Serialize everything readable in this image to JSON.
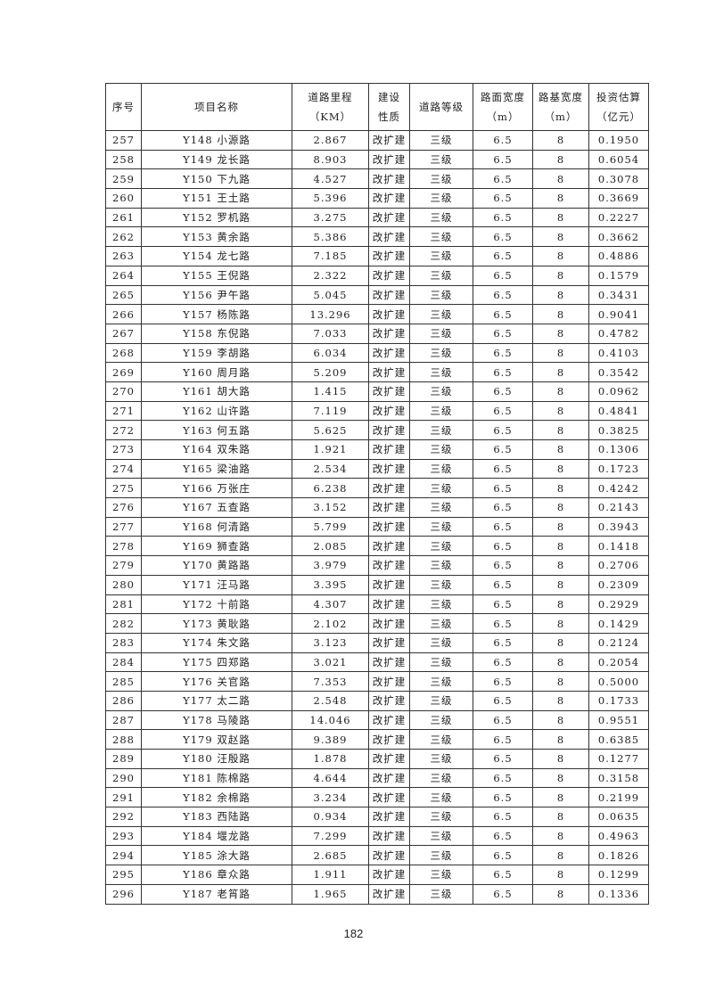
{
  "table": {
    "headers": [
      {
        "l1": "序号",
        "l2": ""
      },
      {
        "l1": "项目名称",
        "l2": ""
      },
      {
        "l1": "道路里程",
        "l2": "（KM）"
      },
      {
        "l1": "建设",
        "l2": "性质"
      },
      {
        "l1": "道路等级",
        "l2": ""
      },
      {
        "l1": "路面宽度",
        "l2": "（m）"
      },
      {
        "l1": "路基宽度",
        "l2": "（m）"
      },
      {
        "l1": "投资估算",
        "l2": "（亿元）"
      }
    ],
    "rows": [
      [
        "257",
        "Y148 小源路",
        "2.867",
        "改扩建",
        "三级",
        "6.5",
        "8",
        "0.1950"
      ],
      [
        "258",
        "Y149 龙长路",
        "8.903",
        "改扩建",
        "三级",
        "6.5",
        "8",
        "0.6054"
      ],
      [
        "259",
        "Y150 下九路",
        "4.527",
        "改扩建",
        "三级",
        "6.5",
        "8",
        "0.3078"
      ],
      [
        "260",
        "Y151 王土路",
        "5.396",
        "改扩建",
        "三级",
        "6.5",
        "8",
        "0.3669"
      ],
      [
        "261",
        "Y152 罗机路",
        "3.275",
        "改扩建",
        "三级",
        "6.5",
        "8",
        "0.2227"
      ],
      [
        "262",
        "Y153 黄余路",
        "5.386",
        "改扩建",
        "三级",
        "6.5",
        "8",
        "0.3662"
      ],
      [
        "263",
        "Y154 龙七路",
        "7.185",
        "改扩建",
        "三级",
        "6.5",
        "8",
        "0.4886"
      ],
      [
        "264",
        "Y155 王倪路",
        "2.322",
        "改扩建",
        "三级",
        "6.5",
        "8",
        "0.1579"
      ],
      [
        "265",
        "Y156 尹午路",
        "5.045",
        "改扩建",
        "三级",
        "6.5",
        "8",
        "0.3431"
      ],
      [
        "266",
        "Y157 杨陈路",
        "13.296",
        "改扩建",
        "三级",
        "6.5",
        "8",
        "0.9041"
      ],
      [
        "267",
        "Y158 东倪路",
        "7.033",
        "改扩建",
        "三级",
        "6.5",
        "8",
        "0.4782"
      ],
      [
        "268",
        "Y159 李胡路",
        "6.034",
        "改扩建",
        "三级",
        "6.5",
        "8",
        "0.4103"
      ],
      [
        "269",
        "Y160 周月路",
        "5.209",
        "改扩建",
        "三级",
        "6.5",
        "8",
        "0.3542"
      ],
      [
        "270",
        "Y161 胡大路",
        "1.415",
        "改扩建",
        "三级",
        "6.5",
        "8",
        "0.0962"
      ],
      [
        "271",
        "Y162 山许路",
        "7.119",
        "改扩建",
        "三级",
        "6.5",
        "8",
        "0.4841"
      ],
      [
        "272",
        "Y163 何五路",
        "5.625",
        "改扩建",
        "三级",
        "6.5",
        "8",
        "0.3825"
      ],
      [
        "273",
        "Y164 双朱路",
        "1.921",
        "改扩建",
        "三级",
        "6.5",
        "8",
        "0.1306"
      ],
      [
        "274",
        "Y165 梁油路",
        "2.534",
        "改扩建",
        "三级",
        "6.5",
        "8",
        "0.1723"
      ],
      [
        "275",
        "Y166 万张庄",
        "6.238",
        "改扩建",
        "三级",
        "6.5",
        "8",
        "0.4242"
      ],
      [
        "276",
        "Y167 五查路",
        "3.152",
        "改扩建",
        "三级",
        "6.5",
        "8",
        "0.2143"
      ],
      [
        "277",
        "Y168 何清路",
        "5.799",
        "改扩建",
        "三级",
        "6.5",
        "8",
        "0.3943"
      ],
      [
        "278",
        "Y169 狮查路",
        "2.085",
        "改扩建",
        "三级",
        "6.5",
        "8",
        "0.1418"
      ],
      [
        "279",
        "Y170 黄路路",
        "3.979",
        "改扩建",
        "三级",
        "6.5",
        "8",
        "0.2706"
      ],
      [
        "280",
        "Y171 汪马路",
        "3.395",
        "改扩建",
        "三级",
        "6.5",
        "8",
        "0.2309"
      ],
      [
        "281",
        "Y172 十前路",
        "4.307",
        "改扩建",
        "三级",
        "6.5",
        "8",
        "0.2929"
      ],
      [
        "282",
        "Y173 黄耿路",
        "2.102",
        "改扩建",
        "三级",
        "6.5",
        "8",
        "0.1429"
      ],
      [
        "283",
        "Y174 朱文路",
        "3.123",
        "改扩建",
        "三级",
        "6.5",
        "8",
        "0.2124"
      ],
      [
        "284",
        "Y175 四郑路",
        "3.021",
        "改扩建",
        "三级",
        "6.5",
        "8",
        "0.2054"
      ],
      [
        "285",
        "Y176 关官路",
        "7.353",
        "改扩建",
        "三级",
        "6.5",
        "8",
        "0.5000"
      ],
      [
        "286",
        "Y177 太二路",
        "2.548",
        "改扩建",
        "三级",
        "6.5",
        "8",
        "0.1733"
      ],
      [
        "287",
        "Y178 马陵路",
        "14.046",
        "改扩建",
        "三级",
        "6.5",
        "8",
        "0.9551"
      ],
      [
        "288",
        "Y179 双赵路",
        "9.389",
        "改扩建",
        "三级",
        "6.5",
        "8",
        "0.6385"
      ],
      [
        "289",
        "Y180 汪殷路",
        "1.878",
        "改扩建",
        "三级",
        "6.5",
        "8",
        "0.1277"
      ],
      [
        "290",
        "Y181 陈棉路",
        "4.644",
        "改扩建",
        "三级",
        "6.5",
        "8",
        "0.3158"
      ],
      [
        "291",
        "Y182 余棉路",
        "3.234",
        "改扩建",
        "三级",
        "6.5",
        "8",
        "0.2199"
      ],
      [
        "292",
        "Y183 西陆路",
        "0.934",
        "改扩建",
        "三级",
        "6.5",
        "8",
        "0.0635"
      ],
      [
        "293",
        "Y184 堰龙路",
        "7.299",
        "改扩建",
        "三级",
        "6.5",
        "8",
        "0.4963"
      ],
      [
        "294",
        "Y185 涂大路",
        "2.685",
        "改扩建",
        "三级",
        "6.5",
        "8",
        "0.1826"
      ],
      [
        "295",
        "Y186 章众路",
        "1.911",
        "改扩建",
        "三级",
        "6.5",
        "8",
        "0.1299"
      ],
      [
        "296",
        "Y187 老筲路",
        "1.965",
        "改扩建",
        "三级",
        "6.5",
        "8",
        "0.1336"
      ]
    ]
  },
  "page_number": "182"
}
